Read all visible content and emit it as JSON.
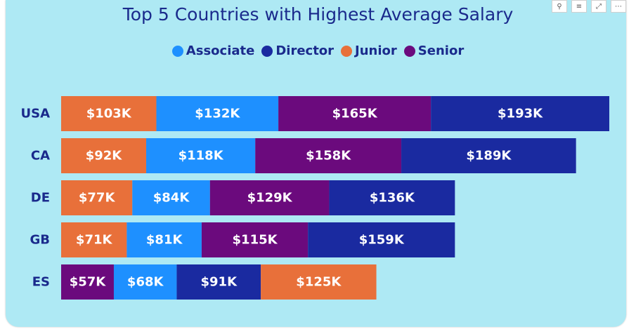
{
  "header": {
    "icons": [
      {
        "name": "pin-icon",
        "glyph": "⚲"
      },
      {
        "name": "filter-icon",
        "glyph": "≡"
      },
      {
        "name": "focus-mode-icon",
        "glyph": "⤢"
      },
      {
        "name": "more-options-icon",
        "glyph": "⋯"
      }
    ]
  },
  "chart_data": {
    "type": "bar",
    "orientation": "horizontal",
    "stacked": true,
    "title": "Top 5 Countries with Highest Average Salary",
    "legend": [
      {
        "name": "Associate",
        "color": "#1e90ff"
      },
      {
        "name": "Director",
        "color": "#1a2aa0"
      },
      {
        "name": "Junior",
        "color": "#e8703a"
      },
      {
        "name": "Senior",
        "color": "#6b0a7d"
      }
    ],
    "legend_position": "top-center",
    "categories": [
      "USA",
      "CA",
      "DE",
      "GB",
      "ES"
    ],
    "stacks": [
      [
        {
          "series": "Junior",
          "value": 103,
          "label": "$103K"
        },
        {
          "series": "Associate",
          "value": 132,
          "label": "$132K"
        },
        {
          "series": "Senior",
          "value": 165,
          "label": "$165K"
        },
        {
          "series": "Director",
          "value": 193,
          "label": "$193K"
        }
      ],
      [
        {
          "series": "Junior",
          "value": 92,
          "label": "$92K"
        },
        {
          "series": "Associate",
          "value": 118,
          "label": "$118K"
        },
        {
          "series": "Senior",
          "value": 158,
          "label": "$158K"
        },
        {
          "series": "Director",
          "value": 189,
          "label": "$189K"
        }
      ],
      [
        {
          "series": "Junior",
          "value": 77,
          "label": "$77K"
        },
        {
          "series": "Associate",
          "value": 84,
          "label": "$84K"
        },
        {
          "series": "Senior",
          "value": 129,
          "label": "$129K"
        },
        {
          "series": "Director",
          "value": 136,
          "label": "$136K"
        }
      ],
      [
        {
          "series": "Junior",
          "value": 71,
          "label": "$71K"
        },
        {
          "series": "Associate",
          "value": 81,
          "label": "$81K"
        },
        {
          "series": "Senior",
          "value": 115,
          "label": "$115K"
        },
        {
          "series": "Director",
          "value": 159,
          "label": "$159K"
        }
      ],
      [
        {
          "series": "Senior",
          "value": 57,
          "label": "$57K"
        },
        {
          "series": "Associate",
          "value": 68,
          "label": "$68K"
        },
        {
          "series": "Director",
          "value": 91,
          "label": "$91K"
        },
        {
          "series": "Junior",
          "value": 125,
          "label": "$125K"
        }
      ]
    ],
    "grid": false,
    "x_axis_visible": false
  }
}
